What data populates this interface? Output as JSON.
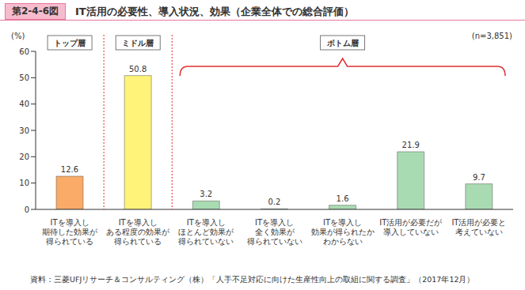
{
  "chart_data": {
    "type": "bar",
    "figure_label": "第2-4-6図",
    "title": "IT活用の必要性、導入状況、効果（企業全体での総合評価）",
    "y_label": "(%)",
    "note": "(n=3,851)",
    "source": "資料：三菱UFJリサーチ＆コンサルティング（株）「人手不足対応に向けた生産性向上の取組に関する調査」（2017年12月）",
    "categories": [
      "ITを導入し\n期待した効果が\n得られている",
      "ITを導入し\nある程度の効果が\n得られている",
      "ITを導入し\nほとんど効果が\n得られていない",
      "ITを導入し\n全く効果が\n得られていない",
      "ITを導入し\n効果が得られたか\nわからない",
      "IT活用が必要だが\n導入していない",
      "IT活用が必要と\n考えていない"
    ],
    "groups": [
      "トップ層",
      "ミドル層",
      "ボトム層",
      "ボトム層",
      "ボトム層",
      "ボトム層",
      "ボトム層"
    ],
    "values": [
      12.6,
      50.8,
      3.2,
      0.2,
      1.6,
      21.9,
      9.7
    ],
    "colors": [
      "#f9ab67",
      "#fff37a",
      "#a9dbb3",
      "#a9dbb3",
      "#a9dbb3",
      "#a9dbb3",
      "#a9dbb3"
    ],
    "ylim": [
      0,
      60
    ],
    "yticks": [
      0,
      10,
      20,
      30,
      40,
      50,
      60
    ],
    "grid": false,
    "data_labels": true
  }
}
